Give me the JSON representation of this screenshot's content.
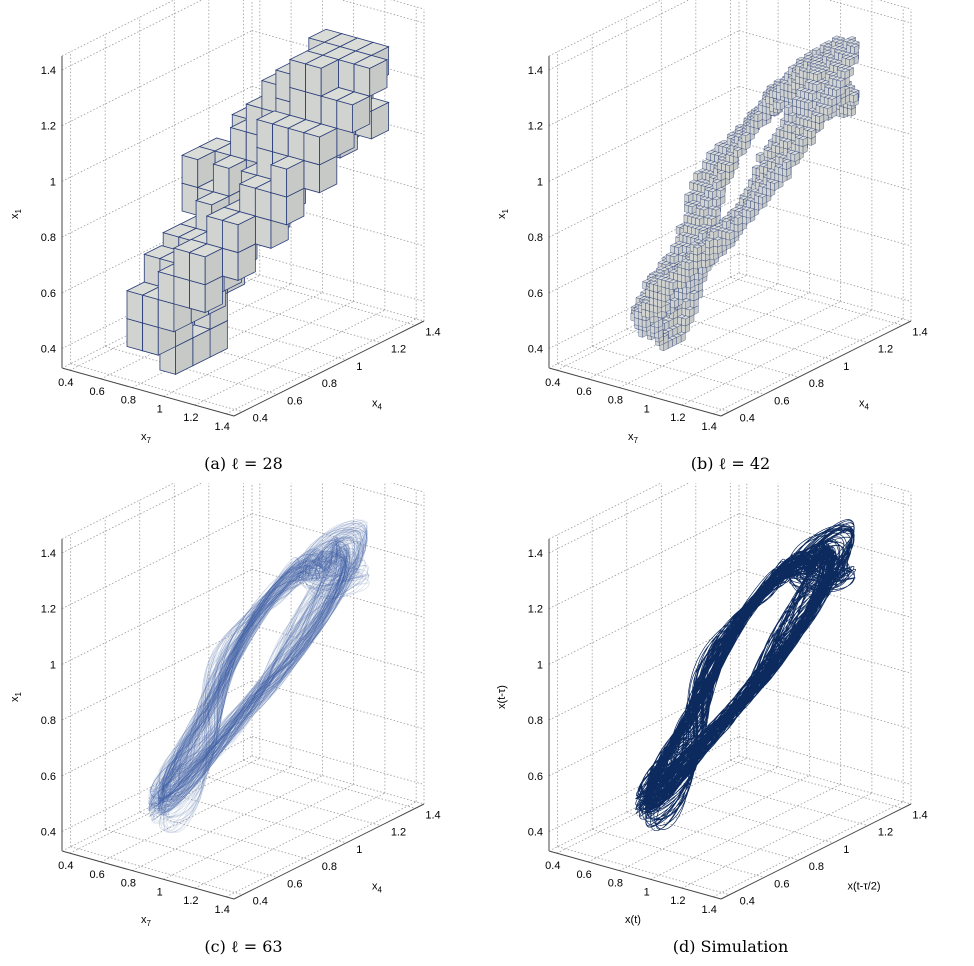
{
  "chart_data": [
    {
      "type": "scatter",
      "render": "voxels",
      "caption": "(a) ℓ = 28",
      "axes": {
        "x": "x7",
        "y": "x4",
        "z": "x1"
      },
      "axis_labels": {
        "x": "x",
        "x_sub": "7",
        "y": "x",
        "y_sub": "4",
        "z": "x",
        "z_sub": "1"
      },
      "xlim": [
        0.35,
        1.45
      ],
      "ylim": [
        0.35,
        1.45
      ],
      "zlim": [
        0.33,
        1.45
      ],
      "xticks": [
        "0.4",
        "0.6",
        "0.8",
        "1",
        "1.2",
        "1.4"
      ],
      "yticks": [
        "0.4",
        "0.6",
        "0.8",
        "1",
        "1.2",
        "1.4"
      ],
      "zticks": [
        "0.4",
        "0.6",
        "0.8",
        "1",
        "1.2",
        "1.4"
      ],
      "grid": true,
      "box_size": 0.1,
      "attractor": {
        "center": [
          0.95,
          0.95,
          0.9
        ],
        "ring_radius": 0.38,
        "tube_radius": 0.16
      }
    },
    {
      "type": "scatter",
      "render": "voxels",
      "caption": "(b) ℓ = 42",
      "axes": {
        "x": "x7",
        "y": "x4",
        "z": "x1"
      },
      "axis_labels": {
        "x": "x",
        "x_sub": "7",
        "y": "x",
        "y_sub": "4",
        "z": "x",
        "z_sub": "1"
      },
      "xlim": [
        0.35,
        1.45
      ],
      "ylim": [
        0.35,
        1.45
      ],
      "zlim": [
        0.33,
        1.45
      ],
      "xticks": [
        "0.4",
        "0.6",
        "0.8",
        "1",
        "1.2",
        "1.4"
      ],
      "yticks": [
        "0.4",
        "0.6",
        "0.8",
        "1",
        "1.2",
        "1.4"
      ],
      "zticks": [
        "0.4",
        "0.6",
        "0.8",
        "1",
        "1.2",
        "1.4"
      ],
      "grid": true,
      "box_size": 0.025,
      "attractor": {
        "center": [
          0.95,
          0.95,
          0.92
        ],
        "ring_radius": 0.4,
        "tube_radius": 0.14
      }
    },
    {
      "type": "scatter",
      "render": "dense-cloud",
      "caption": "(c) ℓ = 63",
      "axes": {
        "x": "x7",
        "y": "x4",
        "z": "x1"
      },
      "axis_labels": {
        "x": "x",
        "x_sub": "7",
        "y": "x",
        "y_sub": "4",
        "z": "x",
        "z_sub": "1"
      },
      "xlim": [
        0.35,
        1.45
      ],
      "ylim": [
        0.35,
        1.45
      ],
      "zlim": [
        0.33,
        1.45
      ],
      "xticks": [
        "0.4",
        "0.6",
        "0.8",
        "1",
        "1.2",
        "1.4"
      ],
      "yticks": [
        "0.4",
        "0.6",
        "0.8",
        "1",
        "1.2",
        "1.4"
      ],
      "zticks": [
        "0.4",
        "0.6",
        "0.8",
        "1",
        "1.2",
        "1.4"
      ],
      "grid": true,
      "attractor": {
        "center": [
          0.95,
          0.95,
          0.92
        ],
        "ring_radius": 0.42,
        "tube_radius": 0.12
      }
    },
    {
      "type": "line",
      "render": "trajectory",
      "caption": "(d) Simulation",
      "axes": {
        "x": "x(t)",
        "y": "x(t-τ/2)",
        "z": "x(t-τ)"
      },
      "axis_labels": {
        "x": "x(t)",
        "x_sub": "",
        "y": "x(t-τ/2)",
        "y_sub": "",
        "z": "x(t-τ)",
        "z_sub": ""
      },
      "xlim": [
        0.35,
        1.45
      ],
      "ylim": [
        0.35,
        1.45
      ],
      "zlim": [
        0.33,
        1.45
      ],
      "xticks": [
        "0.4",
        "0.6",
        "0.8",
        "1",
        "1.2",
        "1.4"
      ],
      "yticks": [
        "0.4",
        "0.6",
        "0.8",
        "1",
        "1.2",
        "1.4"
      ],
      "zticks": [
        "0.4",
        "0.6",
        "0.8",
        "1",
        "1.2",
        "1.4"
      ],
      "grid": true,
      "attractor": {
        "center": [
          0.95,
          0.95,
          0.92
        ],
        "ring_radius": 0.42,
        "tube_radius": 0.12
      }
    }
  ],
  "colors": {
    "voxel_face": "#d0d3cf",
    "voxel_edge": "#2b3e7a",
    "cloud": "#3f5fa3",
    "cloud_light": "#b5c2d6",
    "trajectory": "#0d2a5e",
    "grid": "#9a9a9a"
  }
}
